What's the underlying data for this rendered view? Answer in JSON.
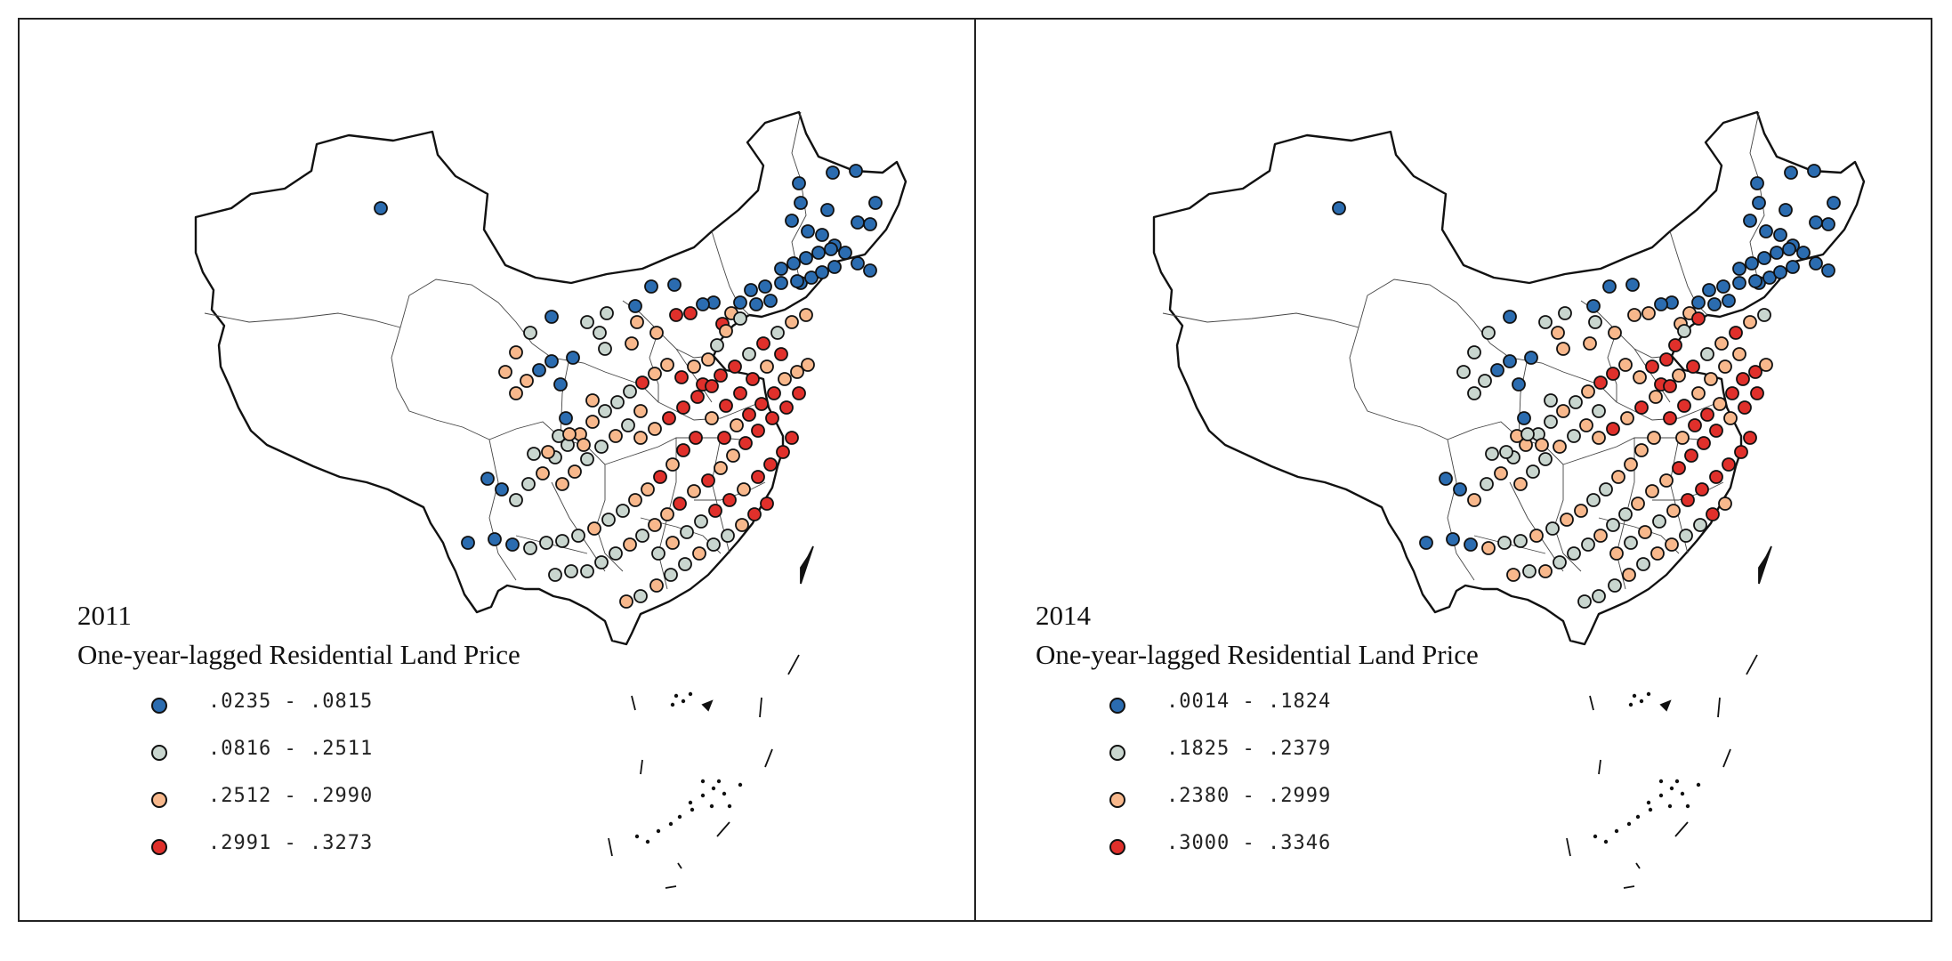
{
  "colors": {
    "class1": "#2b6cb0",
    "class2": "#c9d6cf",
    "class3": "#f8b88c",
    "class4": "#e0302b",
    "outline": "#111111"
  },
  "panels": [
    {
      "year": "2011",
      "title": "One-year-lagged Residential Land Price",
      "legend": [
        {
          "label": ".0235 - .0815",
          "color": "#2b6cb0"
        },
        {
          "label": ".0816 - .2511",
          "color": "#c9d6cf"
        },
        {
          "label": ".2512 - .2990",
          "color": "#f8b88c"
        },
        {
          "label": ".2991 - .3273",
          "color": "#e0302b"
        }
      ]
    },
    {
      "year": "2014",
      "title": "One-year-lagged Residential Land Price",
      "legend": [
        {
          "label": ".0014 - .1824",
          "color": "#2b6cb0"
        },
        {
          "label": ".1825 - .2379",
          "color": "#c9d6cf"
        },
        {
          "label": ".2380 - .2999",
          "color": "#f8b88c"
        },
        {
          "label": ".3000 - .3346",
          "color": "#e0302b"
        }
      ]
    }
  ]
}
